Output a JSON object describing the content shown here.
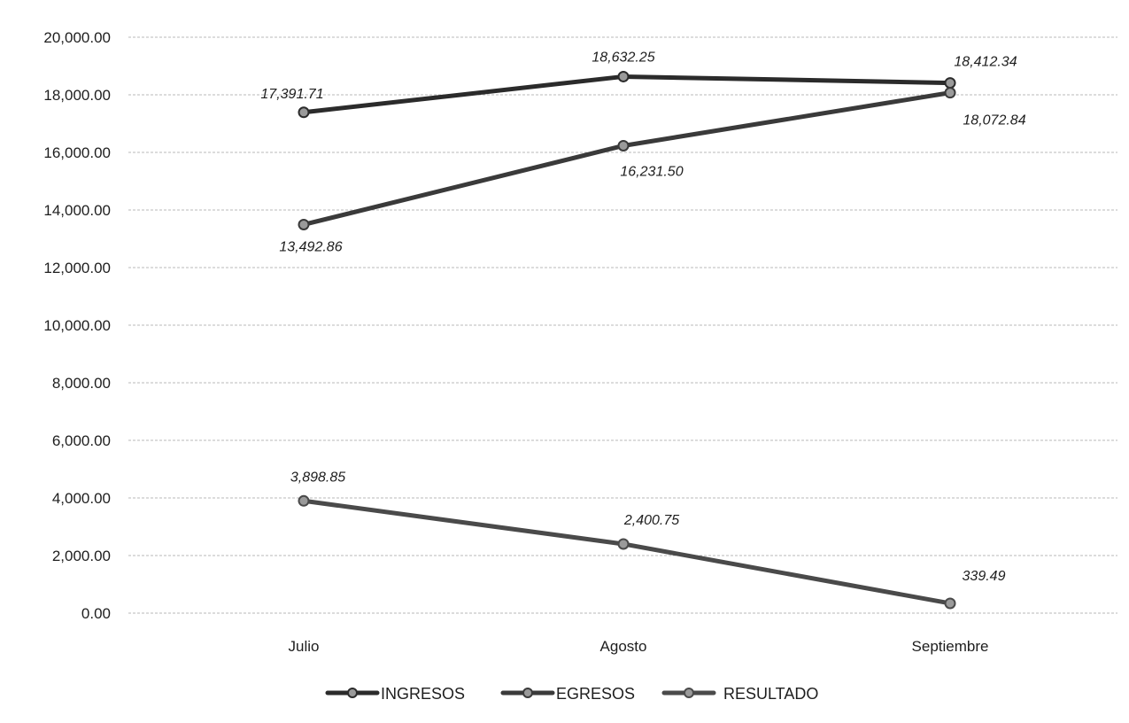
{
  "chart_data": {
    "type": "line",
    "categories": [
      "Julio",
      "Agosto",
      "Septiembre"
    ],
    "series": [
      {
        "name": "INGRESOS",
        "values": [
          17391.71,
          18632.25,
          18412.34
        ],
        "color": "#2b2b2b",
        "labels": [
          "17,391.71",
          "18,632.25",
          "18,412.34"
        ]
      },
      {
        "name": "EGRESOS",
        "values": [
          13492.86,
          16231.5,
          18072.84
        ],
        "color": "#3a3a3a",
        "labels": [
          "13,492.86",
          "16,231.50",
          "18,072.84"
        ]
      },
      {
        "name": "RESULTADO",
        "values": [
          3898.85,
          2400.75,
          339.49
        ],
        "color": "#4a4a4a",
        "labels": [
          "3,898.85",
          "2,400.75",
          "339.49"
        ]
      }
    ],
    "ylim": [
      0,
      20000
    ],
    "yticks": [
      0,
      2000,
      4000,
      6000,
      8000,
      10000,
      12000,
      14000,
      16000,
      18000,
      20000
    ],
    "ytick_labels": [
      "0.00",
      "2,000.00",
      "4,000.00",
      "6,000.00",
      "8,000.00",
      "10,000.00",
      "12,000.00",
      "14,000.00",
      "16,000.00",
      "18,000.00",
      "20,000.00"
    ],
    "grid": true,
    "legend_position": "bottom",
    "title": "",
    "xlabel": "",
    "ylabel": ""
  }
}
